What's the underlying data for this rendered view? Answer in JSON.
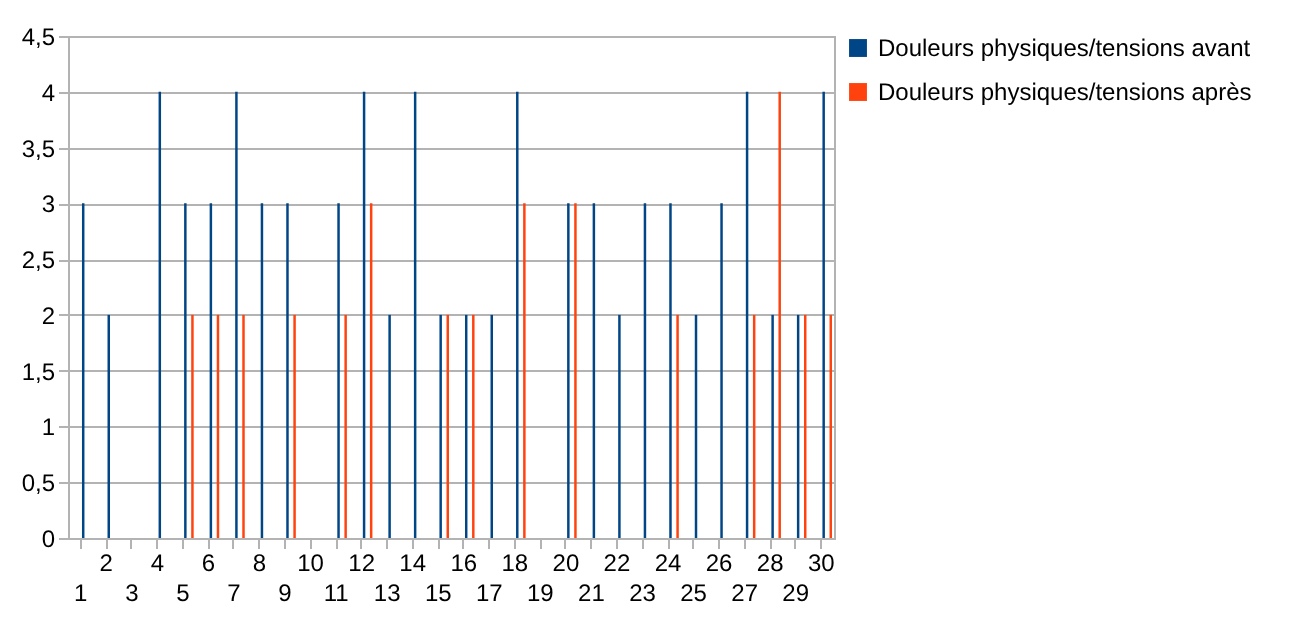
{
  "chart_data": {
    "type": "bar",
    "categories": [
      "1",
      "2",
      "3",
      "4",
      "5",
      "6",
      "7",
      "8",
      "9",
      "10",
      "11",
      "12",
      "13",
      "14",
      "15",
      "16",
      "17",
      "18",
      "19",
      "20",
      "21",
      "22",
      "23",
      "24",
      "25",
      "26",
      "27",
      "28",
      "29",
      "30"
    ],
    "series": [
      {
        "name": "Douleurs physiques/tensions avant",
        "color": "#004586",
        "values": [
          3,
          2,
          0,
          4,
          3,
          3,
          4,
          3,
          3,
          0,
          3,
          4,
          2,
          4,
          2,
          2,
          2,
          4,
          0,
          3,
          3,
          2,
          3,
          3,
          2,
          3,
          4,
          2,
          2,
          4
        ]
      },
      {
        "name": "Douleurs physiques/tensions après",
        "color": "#ff420e",
        "values": [
          0,
          0,
          0,
          0,
          2,
          2,
          2,
          0,
          2,
          0,
          2,
          3,
          0,
          0,
          2,
          2,
          0,
          3,
          0,
          3,
          0,
          0,
          0,
          2,
          0,
          0,
          2,
          4,
          2,
          2
        ]
      }
    ],
    "ylim": [
      0,
      4.5
    ],
    "yticks": [
      0,
      {
        "value": 0.5,
        "label": "0,5"
      },
      1,
      {
        "value": 1.5,
        "label": "1,5"
      },
      2,
      {
        "value": 2.5,
        "label": "2,5"
      },
      3,
      {
        "value": 3.5,
        "label": "3,5"
      },
      4,
      {
        "value": 4.5,
        "label": "4,5"
      }
    ],
    "grid": "y",
    "legend": "right"
  }
}
